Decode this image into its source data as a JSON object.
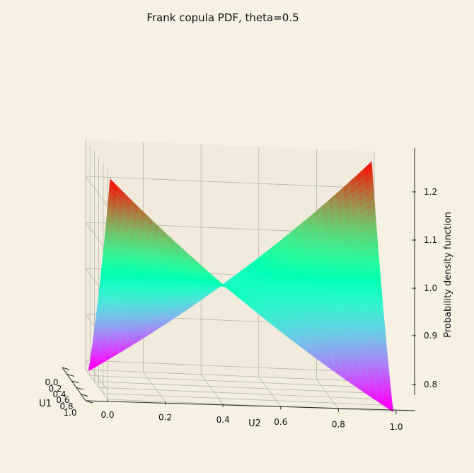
{
  "chart_data": {
    "type": "surface3d",
    "title": "Frank copula PDF, theta=0.5",
    "theta": 0.5,
    "xlabel": "U2",
    "ylabel": "U1",
    "zlabel": "Probability density function",
    "x_ticks": [
      "0.0",
      "0.2",
      "0.4",
      "0.6",
      "0.8",
      "1.0"
    ],
    "y_ticks": [
      "0.0",
      "0.2",
      "0.4",
      "0.6",
      "0.8",
      "1.0"
    ],
    "z_ticks": [
      "0.8",
      "0.9",
      "1.0",
      "1.1",
      "1.2"
    ],
    "xlim": [
      0,
      1
    ],
    "ylim": [
      0,
      1
    ],
    "zlim": [
      0.78,
      1.28
    ],
    "grid": true,
    "colormap": "rainbow",
    "surface": {
      "u_range": [
        0.01,
        0.99
      ],
      "corner_values": {
        "low_corners": 0.79,
        "high_corners": 1.26
      }
    }
  }
}
